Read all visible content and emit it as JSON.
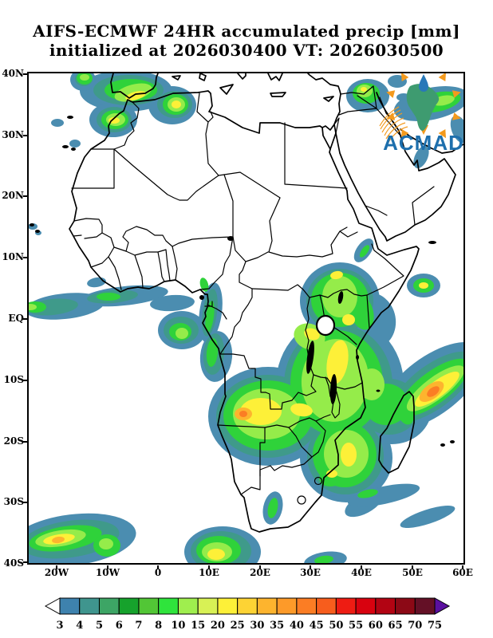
{
  "title": {
    "line1": "AIFS-ECMWF 24HR accumulated precip [mm]",
    "line2": "initialized at 2026030400 VT: 2026030500"
  },
  "logo": {
    "text": "ACMAD",
    "africa_color": "#3e9b70",
    "accent_orange": "#f49a1d",
    "text_color": "#1d6fad",
    "droplet_color": "#2878b8"
  },
  "map": {
    "lat_labels": [
      "40N",
      "30N",
      "20N",
      "10N",
      "EQ",
      "10S",
      "20S",
      "30S",
      "40S"
    ],
    "lon_labels": [
      "20W",
      "10W",
      "0",
      "10E",
      "20E",
      "30E",
      "40E",
      "50E",
      "60E"
    ]
  },
  "colorbar": {
    "values": [
      "3",
      "4",
      "5",
      "6",
      "7",
      "8",
      "10",
      "15",
      "20",
      "25",
      "30",
      "35",
      "40",
      "45",
      "50",
      "55",
      "60",
      "65",
      "70",
      "75"
    ],
    "colors": [
      "#3e82ae",
      "#3f958e",
      "#3da565",
      "#16a22c",
      "#52c636",
      "#2fe43c",
      "#9fee4e",
      "#d8f155",
      "#fdf038",
      "#fdd334",
      "#fdb42e",
      "#fd9a29",
      "#fb7d24",
      "#f75d1d",
      "#ee1c13",
      "#d8020f",
      "#b20413",
      "#8c0916",
      "#641026"
    ],
    "underflow_color": "#ffffff",
    "overflow_color": "#5a10a0"
  }
}
